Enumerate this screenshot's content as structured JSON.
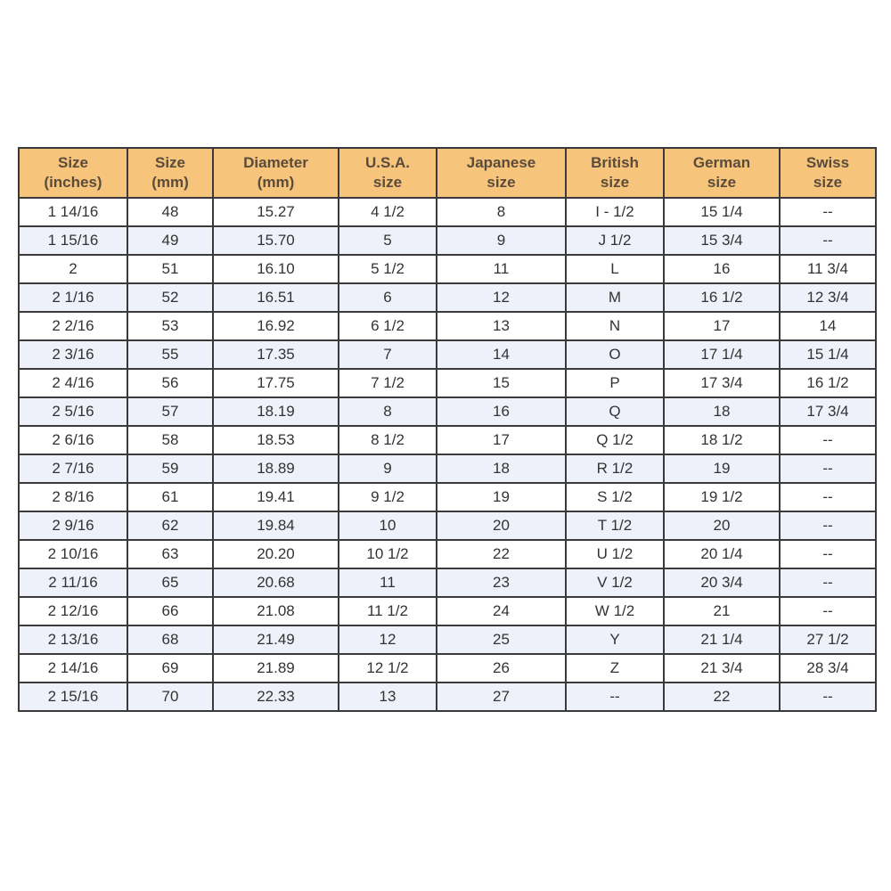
{
  "header_color": "#f6c47a",
  "columns": [
    [
      "Size",
      "(inches)"
    ],
    [
      "Size",
      "(mm)"
    ],
    [
      "Diameter",
      "(mm)"
    ],
    [
      "U.S.A.",
      "size"
    ],
    [
      "Japanese",
      "size"
    ],
    [
      "British",
      "size"
    ],
    [
      "German",
      "size"
    ],
    [
      "Swiss",
      "size"
    ]
  ],
  "rows": [
    [
      "1 14/16",
      "48",
      "15.27",
      "4 1/2",
      "8",
      "I - 1/2",
      "15 1/4",
      "--"
    ],
    [
      "1 15/16",
      "49",
      "15.70",
      "5",
      "9",
      "J 1/2",
      "15 3/4",
      "--"
    ],
    [
      "2",
      "51",
      "16.10",
      "5 1/2",
      "11",
      "L",
      "16",
      "11 3/4"
    ],
    [
      "2 1/16",
      "52",
      "16.51",
      "6",
      "12",
      "M",
      "16 1/2",
      "12 3/4"
    ],
    [
      "2 2/16",
      "53",
      "16.92",
      "6 1/2",
      "13",
      "N",
      "17",
      "14"
    ],
    [
      "2 3/16",
      "55",
      "17.35",
      "7",
      "14",
      "O",
      "17 1/4",
      "15 1/4"
    ],
    [
      "2 4/16",
      "56",
      "17.75",
      "7 1/2",
      "15",
      "P",
      "17 3/4",
      "16 1/2"
    ],
    [
      "2 5/16",
      "57",
      "18.19",
      "8",
      "16",
      "Q",
      "18",
      "17 3/4"
    ],
    [
      "2 6/16",
      "58",
      "18.53",
      "8 1/2",
      "17",
      "Q 1/2",
      "18 1/2",
      "--"
    ],
    [
      "2 7/16",
      "59",
      "18.89",
      "9",
      "18",
      "R 1/2",
      "19",
      "--"
    ],
    [
      "2 8/16",
      "61",
      "19.41",
      "9 1/2",
      "19",
      "S 1/2",
      "19 1/2",
      "--"
    ],
    [
      "2 9/16",
      "62",
      "19.84",
      "10",
      "20",
      "T 1/2",
      "20",
      "--"
    ],
    [
      "2 10/16",
      "63",
      "20.20",
      "10 1/2",
      "22",
      "U 1/2",
      "20 1/4",
      "--"
    ],
    [
      "2 11/16",
      "65",
      "20.68",
      "11",
      "23",
      "V 1/2",
      "20 3/4",
      "--"
    ],
    [
      "2 12/16",
      "66",
      "21.08",
      "11 1/2",
      "24",
      "W 1/2",
      "21",
      "--"
    ],
    [
      "2 13/16",
      "68",
      "21.49",
      "12",
      "25",
      "Y",
      "21 1/4",
      "27 1/2"
    ],
    [
      "2 14/16",
      "69",
      "21.89",
      "12 1/2",
      "26",
      "Z",
      "21 3/4",
      "28 3/4"
    ],
    [
      "2 15/16",
      "70",
      "22.33",
      "13",
      "27",
      "--",
      "22",
      "--"
    ]
  ]
}
